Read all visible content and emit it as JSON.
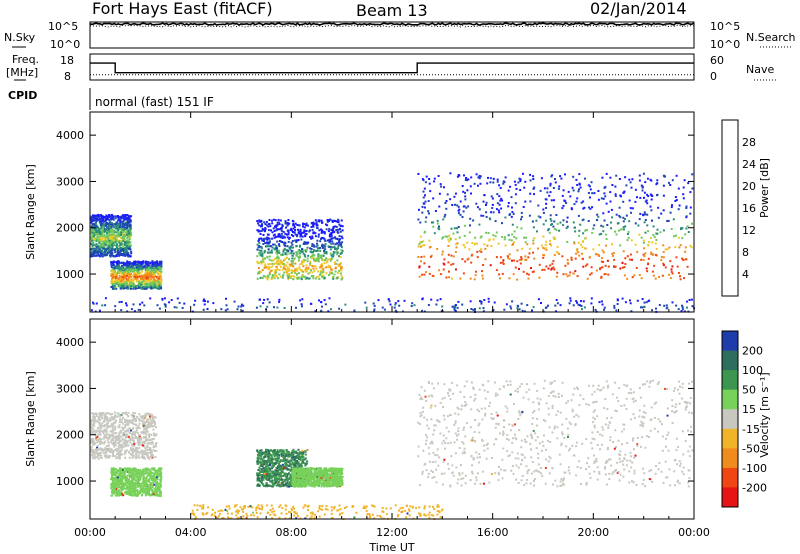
{
  "header": {
    "station": "Fort Hays East (fitACF)",
    "beam": "Beam 13",
    "date": "02/Jan/2014"
  },
  "noise_panel": {
    "left_label": "N.Sky",
    "right_label": "N.Search",
    "left_ticks": [
      "10^5",
      "10^0"
    ],
    "right_ticks": [
      "10^5",
      "10^0"
    ]
  },
  "freq_panel": {
    "left_label_1": "Freq.",
    "left_label_2": "[MHz]",
    "right_label": "Nave",
    "left_ticks": [
      "18",
      "8"
    ],
    "right_ticks": [
      "60",
      "0"
    ],
    "freq_steps": [
      {
        "start_h": 0.0,
        "end_h": 1.0,
        "freq_mhz": 14.5
      },
      {
        "start_h": 1.0,
        "end_h": 13.0,
        "freq_mhz": 10.8
      },
      {
        "start_h": 13.0,
        "end_h": 24.0,
        "freq_mhz": 14.5
      }
    ],
    "nave_level": 12
  },
  "cpid": {
    "label": "CPID",
    "mode": "normal (fast) 151 IF"
  },
  "power_panel": {
    "ylabel": "Slant Range [km]",
    "y_ticks": [
      "1000",
      "2000",
      "3000",
      "4000"
    ],
    "colorbar_label": "Power [dB]",
    "colorbar_ticks": [
      "4",
      "8",
      "12",
      "16",
      "20",
      "24",
      "28"
    ],
    "colors": [
      "#1a1aff",
      "#1e46b4",
      "#2a8c78",
      "#6ec85a",
      "#f0c828",
      "#f08c1e",
      "#f04614",
      "#e61414"
    ]
  },
  "velocity_panel": {
    "ylabel": "Slant Range [km]",
    "y_ticks": [
      "1000",
      "2000",
      "3000",
      "4000"
    ],
    "colorbar_label": "Velocity [m s⁻¹]",
    "colorbar_ticks": [
      "200",
      "100",
      "50",
      "15",
      "-15",
      "-50",
      "-100",
      "-200"
    ],
    "colors": [
      "#1e3caa",
      "#2e6e5e",
      "#3c9650",
      "#78d25a",
      "#c8c8c0",
      "#f0b428",
      "#f08c1e",
      "#f04614",
      "#e61414"
    ]
  },
  "x_axis": {
    "label": "Time UT",
    "ticks": [
      "00:00",
      "04:00",
      "08:00",
      "12:00",
      "16:00",
      "20:00",
      "00:00"
    ]
  },
  "chart_data": [
    {
      "type": "line",
      "title": "Fort Hays East (fitACF)",
      "subtitle": "Beam 13",
      "series": [
        {
          "name": "N.Sky",
          "style": "solid",
          "approx_log10": 4.6
        },
        {
          "name": "N.Search",
          "style": "dotted",
          "approx_log10": 4.2
        }
      ],
      "x_range_hours": [
        0,
        24
      ],
      "ylim_log10": [
        0,
        5
      ]
    },
    {
      "type": "line",
      "series": [
        {
          "name": "Freq.",
          "units": "MHz",
          "x": [
            0,
            1,
            1,
            13,
            13,
            24
          ],
          "y": [
            14.5,
            14.5,
            10.8,
            10.8,
            14.5,
            14.5
          ]
        },
        {
          "name": "Nave",
          "style": "dotted",
          "x": [
            0,
            24
          ],
          "y": [
            12,
            12
          ]
        }
      ],
      "ylim_freq": [
        8,
        18
      ],
      "ylim_nave": [
        0,
        60
      ]
    },
    {
      "type": "heatmap",
      "ylabel": "Slant Range [km]",
      "xlabel": "Time UT",
      "ylim": [
        180,
        4500
      ],
      "x_range_hours": [
        0,
        24
      ],
      "colorbar": {
        "label": "Power [dB]",
        "ticks": [
          4,
          8,
          12,
          16,
          20,
          24,
          28
        ],
        "range": [
          0,
          30
        ]
      },
      "regions": [
        {
          "t0": 0.0,
          "t1": 1.6,
          "r0": 1400,
          "r1": 2300,
          "core": 1800,
          "peak_db": 16
        },
        {
          "t0": 0.8,
          "t1": 2.8,
          "r0": 700,
          "r1": 1300,
          "core": 950,
          "peak_db": 24
        },
        {
          "t0": 6.6,
          "t1": 10.0,
          "r0": 900,
          "r1": 2200,
          "core": 1150,
          "peak_db": 20
        },
        {
          "t0": 13.0,
          "t1": 23.9,
          "r0": 900,
          "r1": 3200,
          "core": 1200,
          "peak_db": 28
        },
        {
          "t0": 0.0,
          "t1": 24.0,
          "r0": 200,
          "r1": 500,
          "core": 300,
          "peak_db": 8
        }
      ]
    },
    {
      "type": "heatmap",
      "ylabel": "Slant Range [km]",
      "xlabel": "Time UT",
      "ylim": [
        180,
        4500
      ],
      "x_range_hours": [
        0,
        24
      ],
      "colorbar": {
        "label": "Velocity [m s⁻¹]",
        "ticks": [
          200,
          100,
          50,
          15,
          -15,
          -50,
          -100,
          -200
        ],
        "range": [
          -250,
          250
        ]
      },
      "regions": [
        {
          "t0": 0.0,
          "t1": 2.6,
          "r0": 1500,
          "r1": 2500,
          "velocity": 0
        },
        {
          "t0": 0.8,
          "t1": 2.8,
          "r0": 700,
          "r1": 1300,
          "velocity": 40
        },
        {
          "t0": 6.6,
          "t1": 8.6,
          "r0": 900,
          "r1": 1700,
          "velocity": 70
        },
        {
          "t0": 8.0,
          "t1": 10.0,
          "r0": 900,
          "r1": 1300,
          "velocity": 40
        },
        {
          "t0": 13.0,
          "t1": 23.9,
          "r0": 900,
          "r1": 3200,
          "velocity": 0
        },
        {
          "t0": 4.0,
          "t1": 14.0,
          "r0": 200,
          "r1": 500,
          "velocity": -40
        }
      ]
    }
  ]
}
